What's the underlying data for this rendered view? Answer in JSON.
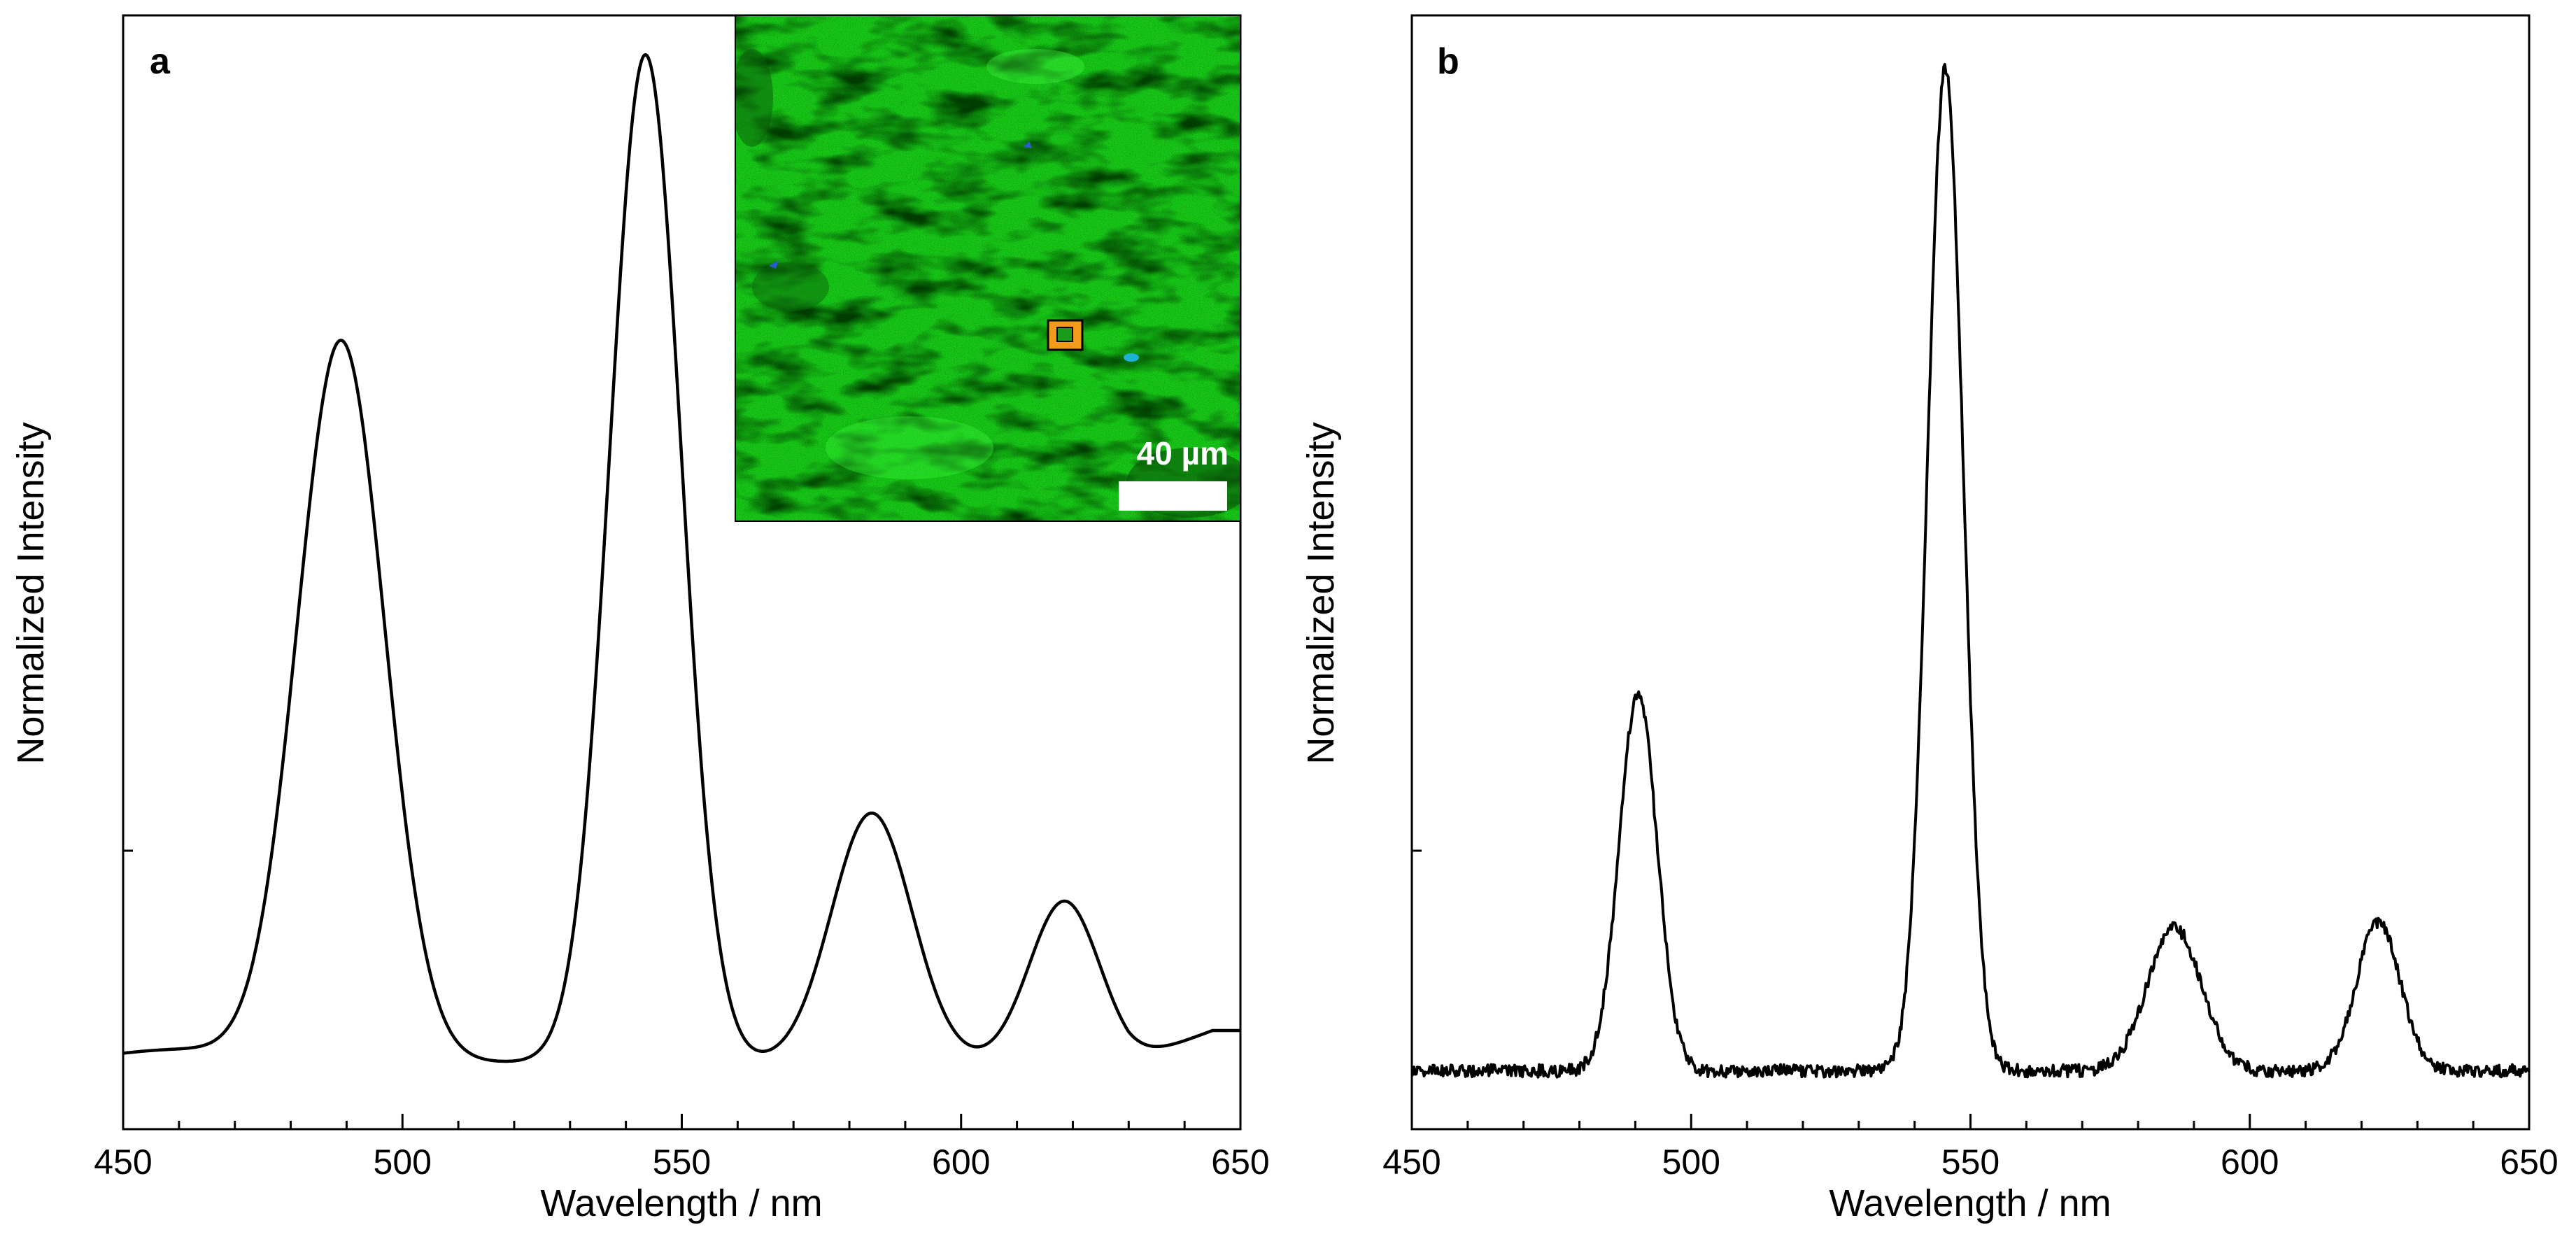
{
  "chart_data": [
    {
      "type": "line",
      "panel_label": "a",
      "xlabel": "Wavelength / nm",
      "ylabel": "Normalized Intensity",
      "xlim": [
        450,
        650
      ],
      "ylim": [
        0,
        1.05
      ],
      "x_major_ticks": [
        450,
        500,
        550,
        600,
        650
      ],
      "x_minor_step": 10,
      "y_tick_labels": [],
      "baseline": 0.063,
      "series": [
        {
          "name": "spectrum",
          "smooth": true,
          "peaks": [
            {
              "center": 489,
              "height": 0.68,
              "sigma": 7.8
            },
            {
              "center": 543.5,
              "height": 0.95,
              "sigma": 6.4
            },
            {
              "center": 584,
              "height": 0.235,
              "sigma": 7.2
            },
            {
              "center": 618.5,
              "height": 0.152,
              "sigma": 6.3
            }
          ],
          "x": [
            450,
            470,
            480,
            489,
            500,
            515,
            530,
            543.5,
            557,
            567,
            584,
            603,
            618.5,
            632,
            650
          ],
          "y": [
            0.063,
            0.085,
            0.27,
            0.66,
            0.36,
            0.08,
            0.42,
            1.0,
            0.36,
            0.12,
            0.29,
            0.09,
            0.21,
            0.09,
            0.093
          ]
        }
      ],
      "inset": {
        "scale_bar_label": "40 µm",
        "background_color": "#17c917",
        "marker_color": "#f29a1a"
      }
    },
    {
      "type": "line",
      "panel_label": "b",
      "xlabel": "Wavelength / nm",
      "ylabel": "Normalized Intensity",
      "xlim": [
        450,
        650
      ],
      "ylim": [
        0,
        1.05
      ],
      "x_major_ticks": [
        450,
        500,
        550,
        600,
        650
      ],
      "x_minor_step": 10,
      "y_tick_labels": [],
      "baseline": 0.055,
      "series": [
        {
          "name": "spectrum",
          "smooth": false,
          "peaks": [
            {
              "center": 490.5,
              "height": 0.355,
              "sigma": 3.4
            },
            {
              "center": 545.5,
              "height": 0.945,
              "sigma": 3.2
            },
            {
              "center": 586.5,
              "height": 0.135,
              "sigma": 4.8
            },
            {
              "center": 623,
              "height": 0.14,
              "sigma": 3.9
            }
          ],
          "x": [
            450,
            480,
            490.5,
            500,
            530,
            545.5,
            560,
            575,
            586.5,
            600,
            612,
            623,
            635,
            650
          ],
          "y": [
            0.055,
            0.058,
            0.41,
            0.1,
            0.055,
            1.0,
            0.07,
            0.058,
            0.19,
            0.06,
            0.055,
            0.195,
            0.058,
            0.065
          ]
        }
      ]
    }
  ],
  "colors": {
    "line": "#000000",
    "axes": "#000000",
    "background": "#ffffff"
  }
}
